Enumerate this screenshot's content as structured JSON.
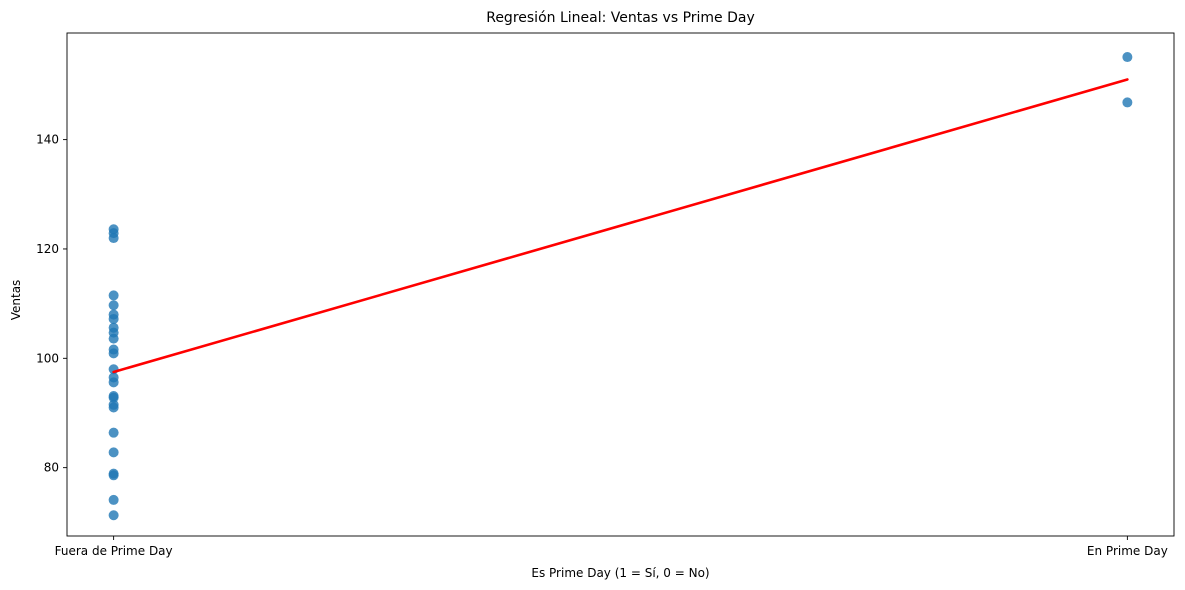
{
  "chart_data": {
    "type": "scatter",
    "title": "Regresión Lineal: Ventas vs Prime Day",
    "xlabel": "Es Prime Day (1 = Sí, 0 = No)",
    "ylabel": "Ventas",
    "xlim": [
      -0.046,
      1.046
    ],
    "ylim": [
      67.5,
      159.5
    ],
    "x_ticks": [
      {
        "value": 0,
        "label": "Fuera de Prime Day"
      },
      {
        "value": 1,
        "label": "En Prime Day"
      }
    ],
    "y_ticks": [
      80,
      100,
      120,
      140
    ],
    "grid": false,
    "point_color": "#1f77b4",
    "line_color": "#ff0000",
    "points": [
      {
        "x": 0,
        "y": 123.6
      },
      {
        "x": 0,
        "y": 122.9
      },
      {
        "x": 0,
        "y": 122.0
      },
      {
        "x": 0,
        "y": 111.5
      },
      {
        "x": 0,
        "y": 109.7
      },
      {
        "x": 0,
        "y": 108.0
      },
      {
        "x": 0,
        "y": 107.2
      },
      {
        "x": 0,
        "y": 105.6
      },
      {
        "x": 0,
        "y": 104.7
      },
      {
        "x": 0,
        "y": 103.6
      },
      {
        "x": 0,
        "y": 101.6
      },
      {
        "x": 0,
        "y": 100.9
      },
      {
        "x": 0,
        "y": 98.0
      },
      {
        "x": 0,
        "y": 96.5
      },
      {
        "x": 0,
        "y": 95.6
      },
      {
        "x": 0,
        "y": 93.1
      },
      {
        "x": 0,
        "y": 92.8
      },
      {
        "x": 0,
        "y": 91.5
      },
      {
        "x": 0,
        "y": 91.0
      },
      {
        "x": 0,
        "y": 86.4
      },
      {
        "x": 0,
        "y": 82.8
      },
      {
        "x": 0,
        "y": 78.9
      },
      {
        "x": 0,
        "y": 78.6
      },
      {
        "x": 0,
        "y": 74.1
      },
      {
        "x": 0,
        "y": 71.3
      },
      {
        "x": 1,
        "y": 155.1
      },
      {
        "x": 1,
        "y": 146.8
      }
    ],
    "regression_line": {
      "x": [
        0,
        1
      ],
      "y": [
        97.5,
        151.0
      ]
    }
  }
}
